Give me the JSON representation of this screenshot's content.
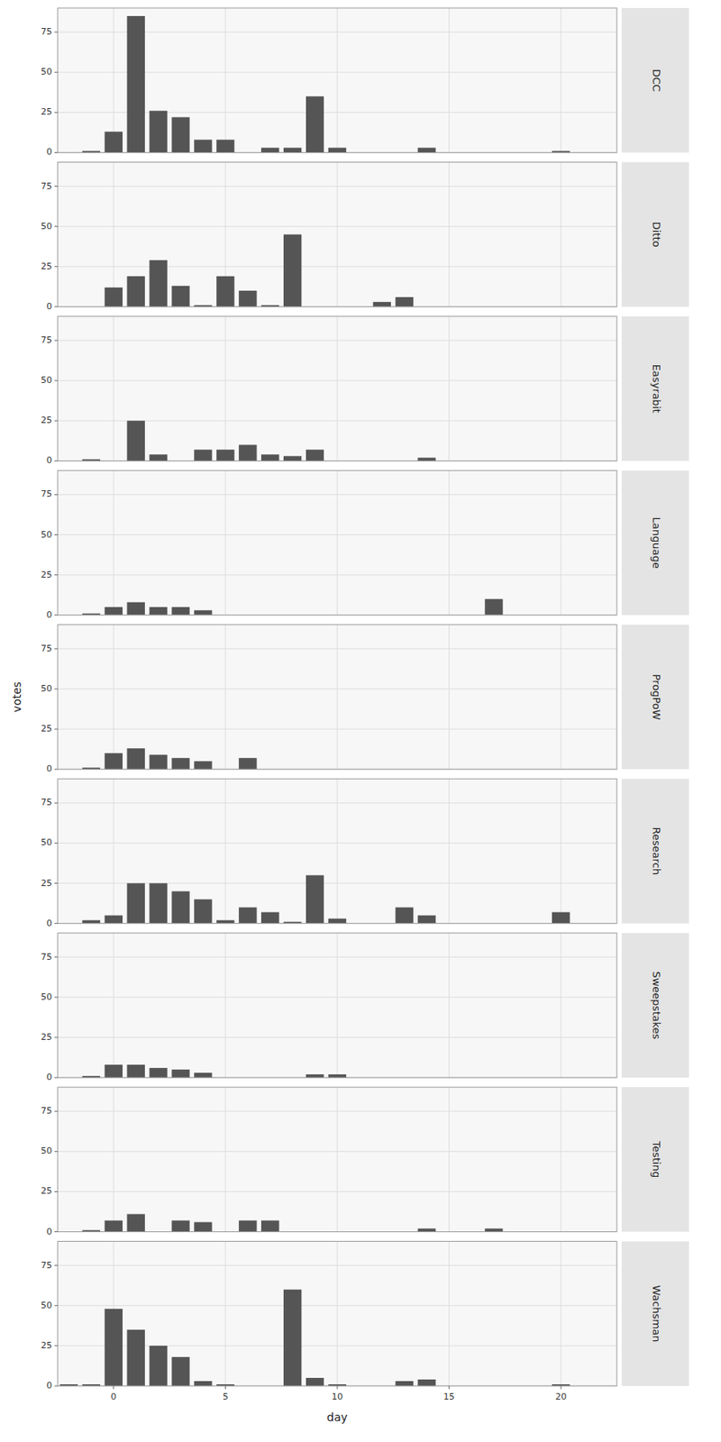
{
  "chart_data": [
    {
      "type": "bar",
      "title": "DCC",
      "x": [
        -1,
        0,
        1,
        2,
        3,
        4,
        5,
        7,
        8,
        9,
        10,
        14,
        20
      ],
      "values": [
        1,
        13,
        85,
        26,
        22,
        8,
        8,
        3,
        3,
        35,
        3,
        3,
        1
      ],
      "color": "#555555",
      "xlim": [
        -2.5,
        22.5
      ],
      "ylim": [
        0,
        90
      ],
      "xticks": [
        0,
        5,
        10,
        15,
        20
      ],
      "yticks": [
        0,
        25,
        50,
        75
      ],
      "grid": true,
      "tick_labels": "y"
    },
    {
      "type": "bar",
      "title": "Ditto",
      "x": [
        0,
        1,
        2,
        3,
        4,
        5,
        6,
        7,
        8,
        12,
        13
      ],
      "values": [
        12,
        19,
        29,
        13,
        1,
        19,
        10,
        1,
        45,
        3,
        6
      ],
      "color": "#555555",
      "xlim": [
        -2.5,
        22.5
      ],
      "ylim": [
        0,
        90
      ],
      "xticks": [
        0,
        5,
        10,
        15,
        20
      ],
      "yticks": [
        0,
        25,
        50,
        75
      ],
      "grid": true,
      "tick_labels": "y"
    },
    {
      "type": "bar",
      "title": "Easyrabit",
      "x": [
        -1,
        1,
        2,
        4,
        5,
        6,
        7,
        8,
        9,
        14
      ],
      "values": [
        1,
        25,
        4,
        7,
        7,
        10,
        4,
        3,
        7,
        2
      ],
      "color": "#555555",
      "xlim": [
        -2.5,
        22.5
      ],
      "ylim": [
        0,
        90
      ],
      "xticks": [
        0,
        5,
        10,
        15,
        20
      ],
      "yticks": [
        0,
        25,
        50,
        75
      ],
      "grid": true,
      "tick_labels": "y"
    },
    {
      "type": "bar",
      "title": "Language",
      "x": [
        -1,
        0,
        1,
        2,
        3,
        4,
        17
      ],
      "values": [
        1,
        5,
        8,
        5,
        5,
        3,
        10
      ],
      "color": "#555555",
      "xlim": [
        -2.5,
        22.5
      ],
      "ylim": [
        0,
        90
      ],
      "xticks": [
        0,
        5,
        10,
        15,
        20
      ],
      "yticks": [
        0,
        25,
        50,
        75
      ],
      "grid": true,
      "tick_labels": "y"
    },
    {
      "type": "bar",
      "title": "ProgPoW",
      "y_label": "votes",
      "x": [
        -1,
        0,
        1,
        2,
        3,
        4,
        6
      ],
      "values": [
        1,
        10,
        13,
        9,
        7,
        5,
        7
      ],
      "color": "#555555",
      "xlim": [
        -2.5,
        22.5
      ],
      "ylim": [
        0,
        90
      ],
      "xticks": [
        0,
        5,
        10,
        15,
        20
      ],
      "yticks": [
        0,
        25,
        50,
        75
      ],
      "grid": true,
      "tick_labels": "y"
    },
    {
      "type": "bar",
      "title": "Research",
      "x": [
        -1,
        0,
        1,
        2,
        3,
        4,
        5,
        6,
        7,
        8,
        9,
        10,
        13,
        14,
        20
      ],
      "values": [
        2,
        5,
        25,
        25,
        20,
        15,
        2,
        10,
        7,
        1,
        30,
        3,
        10,
        5,
        7
      ],
      "color": "#555555",
      "xlim": [
        -2.5,
        22.5
      ],
      "ylim": [
        0,
        90
      ],
      "xticks": [
        0,
        5,
        10,
        15,
        20
      ],
      "yticks": [
        0,
        25,
        50,
        75
      ],
      "grid": true,
      "tick_labels": "y"
    },
    {
      "type": "bar",
      "title": "Sweepstakes",
      "x": [
        -1,
        0,
        1,
        2,
        3,
        4,
        9,
        10
      ],
      "values": [
        1,
        8,
        8,
        6,
        5,
        3,
        2,
        2
      ],
      "color": "#555555",
      "xlim": [
        -2.5,
        22.5
      ],
      "ylim": [
        0,
        90
      ],
      "xticks": [
        0,
        5,
        10,
        15,
        20
      ],
      "yticks": [
        0,
        25,
        50,
        75
      ],
      "grid": true,
      "tick_labels": "y"
    },
    {
      "type": "bar",
      "title": "Testing",
      "x": [
        -1,
        0,
        1,
        3,
        4,
        6,
        7,
        14,
        17
      ],
      "values": [
        1,
        7,
        11,
        7,
        6,
        7,
        7,
        2,
        2
      ],
      "color": "#555555",
      "xlim": [
        -2.5,
        22.5
      ],
      "ylim": [
        0,
        90
      ],
      "xticks": [
        0,
        5,
        10,
        15,
        20
      ],
      "yticks": [
        0,
        25,
        50,
        75
      ],
      "grid": true,
      "tick_labels": "y"
    },
    {
      "type": "bar",
      "title": "Wachsman",
      "x_label": "day",
      "x": [
        -2,
        -1,
        0,
        1,
        2,
        3,
        4,
        5,
        8,
        9,
        10,
        13,
        14,
        20
      ],
      "values": [
        1,
        1,
        48,
        35,
        25,
        18,
        3,
        1,
        60,
        5,
        1,
        3,
        4,
        1
      ],
      "color": "#555555",
      "xlim": [
        -2.5,
        22.5
      ],
      "ylim": [
        0,
        90
      ],
      "xticks": [
        0,
        5,
        10,
        15,
        20
      ],
      "yticks": [
        0,
        25,
        50,
        75
      ],
      "grid": true
    }
  ]
}
